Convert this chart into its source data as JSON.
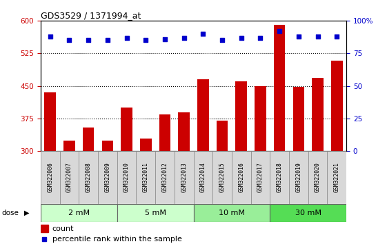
{
  "title": "GDS3529 / 1371994_at",
  "samples": [
    "GSM322006",
    "GSM322007",
    "GSM322008",
    "GSM322009",
    "GSM322010",
    "GSM322011",
    "GSM322012",
    "GSM322013",
    "GSM322014",
    "GSM322015",
    "GSM322016",
    "GSM322017",
    "GSM322018",
    "GSM322019",
    "GSM322020",
    "GSM322021"
  ],
  "bar_values": [
    435,
    325,
    355,
    325,
    400,
    330,
    385,
    390,
    465,
    370,
    460,
    450,
    590,
    448,
    468,
    508
  ],
  "dot_values": [
    88,
    85,
    85,
    85,
    87,
    85,
    86,
    87,
    90,
    85,
    87,
    87,
    92,
    88,
    88,
    88
  ],
  "bar_color": "#cc0000",
  "dot_color": "#0000cc",
  "bar_bottom": 300,
  "ylim_left": [
    300,
    600
  ],
  "ylim_right": [
    0,
    100
  ],
  "yticks_left": [
    300,
    375,
    450,
    525,
    600
  ],
  "yticks_right": [
    0,
    25,
    50,
    75,
    100
  ],
  "doses": [
    "2 mM",
    "5 mM",
    "10 mM",
    "30 mM"
  ],
  "dose_groups": [
    4,
    4,
    4,
    4
  ],
  "group_colors": [
    "#ccffcc",
    "#ccffcc",
    "#99ee99",
    "#55dd55"
  ],
  "sample_bg": "#d8d8d8"
}
